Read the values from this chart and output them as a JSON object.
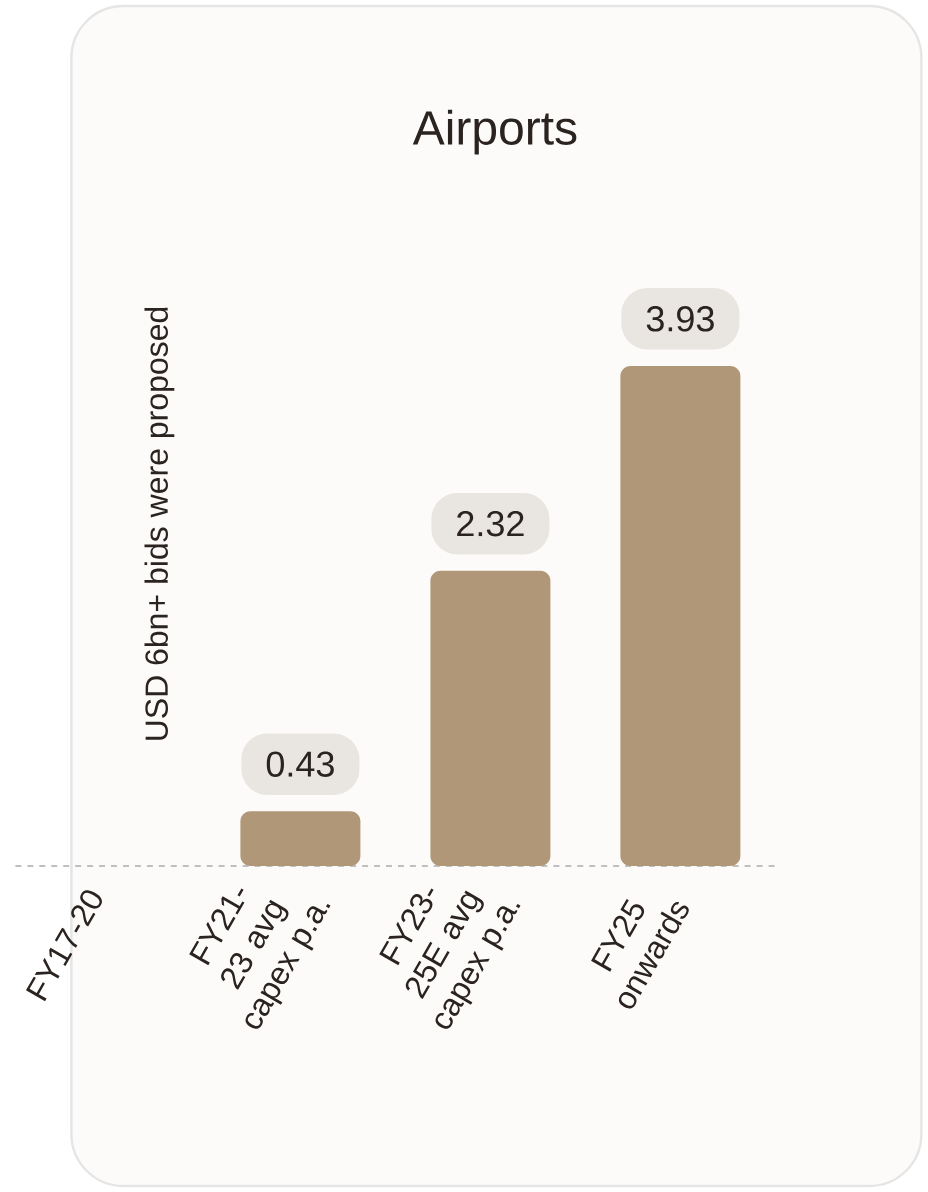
{
  "chart_data": {
    "type": "bar",
    "title": "Airports",
    "categories": [
      "FY17-20",
      "FY21-23 avg capex p.a.",
      "FY23-25E avg capex p.a.",
      "FY25 onwards"
    ],
    "values": [
      null,
      0.43,
      2.32,
      3.93
    ],
    "color": "#b09777",
    "data_labels": true,
    "annotations": [
      "USD 6bn+ bids were proposed"
    ]
  }
}
